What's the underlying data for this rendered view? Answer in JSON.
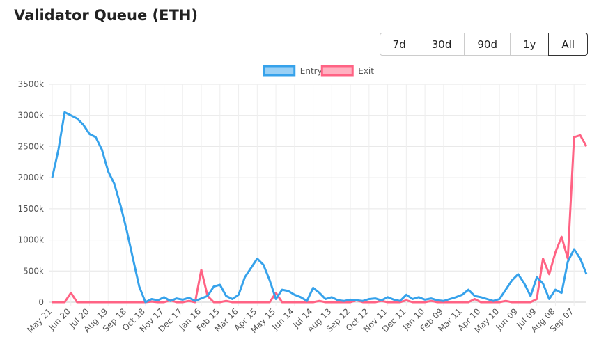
{
  "title": "Validator Queue (ETH)",
  "range_buttons": [
    "7d",
    "30d",
    "90d",
    "1y",
    "All"
  ],
  "active_range": "All",
  "chart_data": {
    "type": "line",
    "categories": [
      "May 21",
      null,
      null,
      "Jun 20",
      null,
      null,
      "Jul 20",
      null,
      null,
      "Aug 19",
      null,
      null,
      "Sep 18",
      null,
      null,
      "Oct 18",
      null,
      null,
      "Nov 17",
      null,
      null,
      "Dec 17",
      null,
      null,
      "Jan 16",
      null,
      null,
      "Feb 15",
      null,
      null,
      "Mar 16",
      null,
      null,
      "Apr 15",
      null,
      null,
      "May 15",
      null,
      null,
      "Jun 14",
      null,
      null,
      "Jul 14",
      null,
      null,
      "Aug 13",
      null,
      null,
      "Sep 12",
      null,
      null,
      "Oct 12",
      null,
      null,
      "Nov 11",
      null,
      null,
      "Dec 11",
      null,
      null,
      "Jan 10",
      null,
      null,
      "Feb 09",
      null,
      null,
      "Mar 11",
      null,
      null,
      "Apr 10",
      null,
      null,
      "May 10",
      null,
      null,
      "Jun 09",
      null,
      null,
      "Jul 09",
      null,
      null,
      "Aug 08",
      null,
      null,
      "Sep 07",
      null,
      null
    ],
    "series": [
      {
        "name": "Entry",
        "color": "#36a2eb",
        "fill": "#9ad0f5",
        "values": [
          2000000,
          2450000,
          3050000,
          3000000,
          2950000,
          2850000,
          2700000,
          2650000,
          2450000,
          2100000,
          1900000,
          1550000,
          1150000,
          700000,
          250000,
          0,
          50000,
          30000,
          80000,
          20000,
          60000,
          40000,
          70000,
          20000,
          60000,
          100000,
          250000,
          280000,
          100000,
          50000,
          120000,
          400000,
          550000,
          700000,
          600000,
          350000,
          50000,
          200000,
          180000,
          120000,
          80000,
          20000,
          230000,
          150000,
          50000,
          80000,
          30000,
          20000,
          40000,
          30000,
          20000,
          50000,
          60000,
          30000,
          80000,
          40000,
          20000,
          120000,
          50000,
          80000,
          40000,
          60000,
          30000,
          20000,
          50000,
          80000,
          120000,
          200000,
          100000,
          80000,
          50000,
          20000,
          50000,
          200000,
          350000,
          450000,
          300000,
          100000,
          400000,
          300000,
          50000,
          200000,
          150000,
          650000,
          850000,
          700000,
          450000
        ]
      },
      {
        "name": "Exit",
        "color": "#ff6384",
        "fill": "#ffb1c1",
        "values": [
          0,
          0,
          0,
          150000,
          0,
          0,
          0,
          0,
          0,
          0,
          0,
          0,
          0,
          0,
          0,
          0,
          10000,
          0,
          0,
          30000,
          0,
          0,
          20000,
          0,
          520000,
          100000,
          0,
          0,
          20000,
          0,
          0,
          0,
          0,
          0,
          0,
          0,
          150000,
          0,
          0,
          0,
          0,
          0,
          0,
          20000,
          0,
          0,
          0,
          0,
          0,
          30000,
          0,
          0,
          0,
          20000,
          0,
          0,
          0,
          30000,
          0,
          0,
          0,
          20000,
          0,
          0,
          0,
          0,
          0,
          0,
          50000,
          0,
          0,
          0,
          0,
          20000,
          0,
          0,
          0,
          0,
          50000,
          700000,
          450000,
          800000,
          1050000,
          700000,
          2650000,
          2680000,
          2500000
        ]
      }
    ],
    "ylim": [
      0,
      3500000
    ],
    "yticks": [
      {
        "value": 0,
        "label": "0"
      },
      {
        "value": 500000,
        "label": "500k"
      },
      {
        "value": 1000000,
        "label": "1000k"
      },
      {
        "value": 1500000,
        "label": "1500k"
      },
      {
        "value": 2000000,
        "label": "2000k"
      },
      {
        "value": 2500000,
        "label": "2500k"
      },
      {
        "value": 3000000,
        "label": "3000k"
      },
      {
        "value": 3500000,
        "label": "3500k"
      }
    ],
    "grid": true,
    "legend": "top"
  }
}
